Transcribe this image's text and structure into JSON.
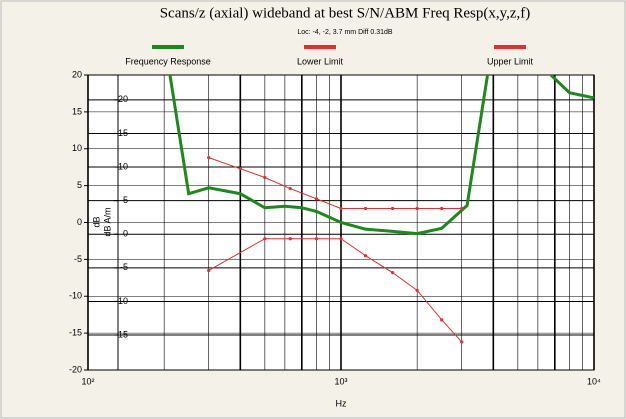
{
  "chart_data": {
    "type": "line",
    "title": "Scans/z (axial) wideband at best S/N/ABM Freq Resp(x,y,z,f)",
    "subtitle": "Loc: -4, -2, 3.7 mm Diff 0.31dB",
    "xlabel": "Hz",
    "ylabel": "dB",
    "y2label": "dB A/m",
    "xscale": "log",
    "xlim": [
      100,
      10000
    ],
    "xticks": [
      {
        "value": 100,
        "label": "10²"
      },
      {
        "value": 1000,
        "label": "10³"
      },
      {
        "value": 10000,
        "label": "10⁴"
      }
    ],
    "ylim": [
      -20,
      20
    ],
    "yticks": [
      20,
      15,
      10,
      5,
      0,
      -5,
      -10,
      -15,
      -20
    ],
    "y2lim": [
      -20.2,
      23.7
    ],
    "y2ticks": [
      20,
      15,
      10,
      5,
      0,
      -5,
      -10,
      -15
    ],
    "grid": true,
    "series": [
      {
        "name": "Frequency Response",
        "color": "#1a8a1a",
        "x": [
          200,
          250,
          300,
          400,
          500,
          600,
          700,
          800,
          1000,
          1250,
          1600,
          2000,
          2500,
          3150,
          4000,
          5000,
          6300,
          8000,
          10000
        ],
        "values": [
          25,
          3.9,
          4.7,
          3.9,
          2.0,
          2.2,
          2.0,
          1.5,
          0,
          -0.9,
          -1.2,
          -1.5,
          -0.8,
          2.3,
          25,
          30,
          21,
          17.6,
          16.9
        ]
      },
      {
        "name": "Lower Limit",
        "color": "#e03030",
        "markers": true,
        "x": [
          300,
          500,
          630,
          800,
          1000,
          1250,
          1600,
          2000,
          2500,
          3000
        ],
        "values": [
          -6.5,
          -2.2,
          -2.2,
          -2.2,
          -2.2,
          -4.5,
          -6.8,
          -9.2,
          -13.2,
          -16.2
        ]
      },
      {
        "name": "Upper Limit",
        "color": "#e03030",
        "markers": true,
        "x": [
          300,
          400,
          500,
          630,
          800,
          1000,
          1250,
          1600,
          2000,
          2500,
          3000
        ],
        "values": [
          8.8,
          7.3,
          6.1,
          4.6,
          3.2,
          1.9,
          1.9,
          1.9,
          1.9,
          1.9,
          1.9
        ]
      }
    ]
  }
}
